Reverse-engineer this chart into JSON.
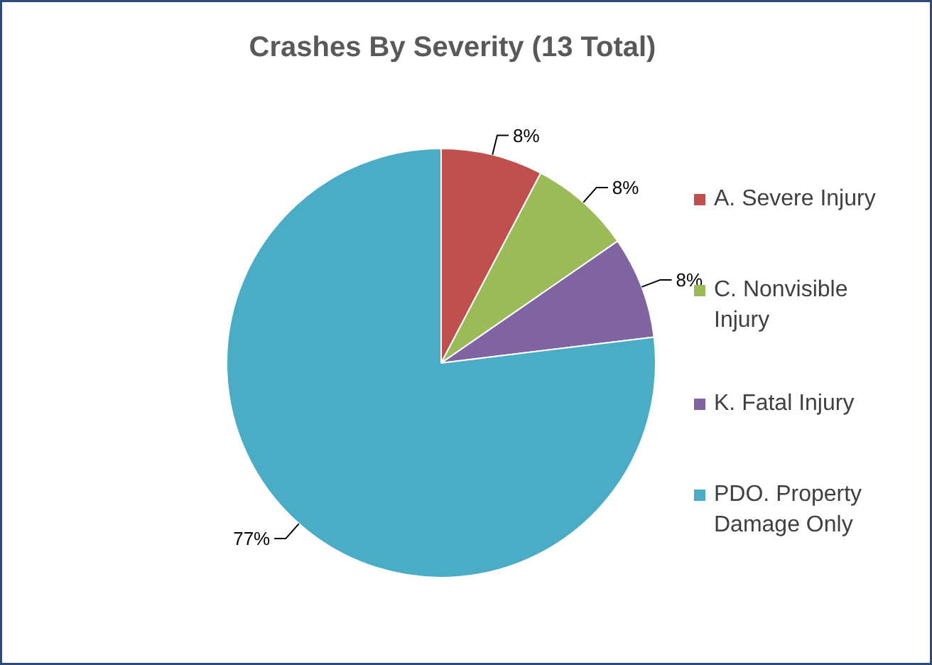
{
  "chart_data": {
    "type": "pie",
    "title": "Crashes By Severity (13 Total)",
    "categories": [
      "A. Severe Injury",
      "C. Nonvisible Injury",
      "K. Fatal Injury",
      "PDO. Property Damage Only"
    ],
    "values": [
      7.69,
      7.69,
      7.69,
      76.92
    ],
    "value_labels": [
      "8%",
      "8%",
      "8%",
      "77%"
    ],
    "colors": [
      "#c0504d",
      "#9bbb59",
      "#8064a2",
      "#4bacc6"
    ],
    "legend": "right"
  }
}
